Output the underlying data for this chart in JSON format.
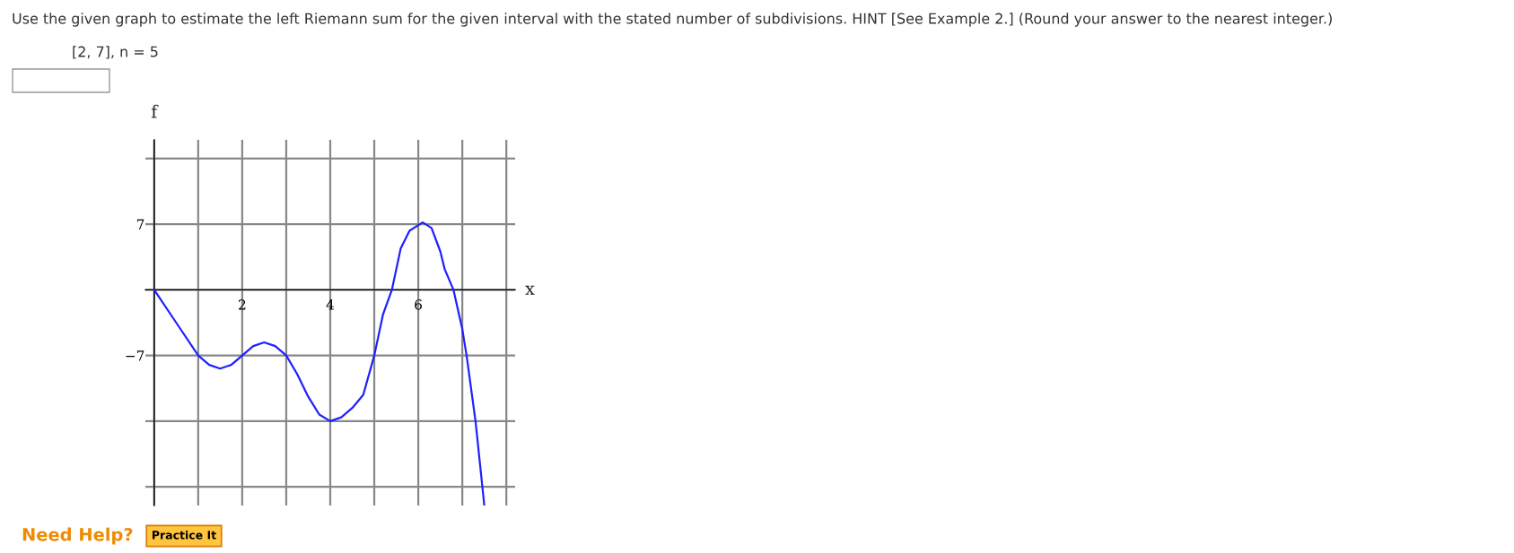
{
  "chart_data": {
    "type": "line",
    "title": "Use the given graph to estimate the left Riemann sum for the given interval with the stated number of subdivisions. HINT [See Example 2.] (Round your answer to the nearest integer.)",
    "subtitle": "[2, 7], n = 5",
    "xlabel": "x",
    "ylabel": "f",
    "x": [
      0,
      0.5,
      1,
      1.25,
      1.5,
      1.75,
      2,
      2.25,
      2.5,
      2.75,
      3,
      3.25,
      3.5,
      3.75,
      4,
      4.25,
      4.5,
      4.75,
      5,
      5.2,
      5.4,
      5.6,
      5.8,
      6.1,
      6.3,
      6.5,
      6.6,
      6.8,
      7,
      7.1,
      7.3,
      7.5
    ],
    "series": [
      {
        "color": "#2020ff",
        "values": [
          0,
          -3.5,
          -7,
          -8.0,
          -8.4,
          -8.0,
          -7,
          -6.0,
          -5.6,
          -6.0,
          -7,
          -9,
          -11.4,
          -13.3,
          -14,
          -13.6,
          -12.6,
          -11.2,
          -7,
          -2.6,
          0,
          4.4,
          6.3,
          7.2,
          6.6,
          4.1,
          2.2,
          0,
          -4.2,
          -7.1,
          -14,
          -23
        ]
      }
    ],
    "xlim": [
      -0.2,
      8.2
    ],
    "ylim": [
      -23,
      16
    ],
    "xticks": [
      {
        "value": 0,
        "label": null
      },
      {
        "value": 1,
        "label": null
      },
      2,
      {
        "value": 3,
        "label": null
      },
      4,
      {
        "value": 5,
        "label": null
      },
      6,
      {
        "value": 7,
        "label": null
      },
      {
        "value": 8,
        "label": null
      }
    ],
    "yticks": [
      {
        "value": -21,
        "label": null
      },
      {
        "value": -14,
        "label": null
      },
      {
        "value": -7,
        "label": "−7"
      },
      {
        "value": 0,
        "label": null
      },
      7,
      {
        "value": 14,
        "label": null
      }
    ],
    "grid": true,
    "legend": false,
    "marker": "none",
    "line_style": "solid",
    "annotations": [
      "Need Help?",
      "Practice It"
    ]
  }
}
